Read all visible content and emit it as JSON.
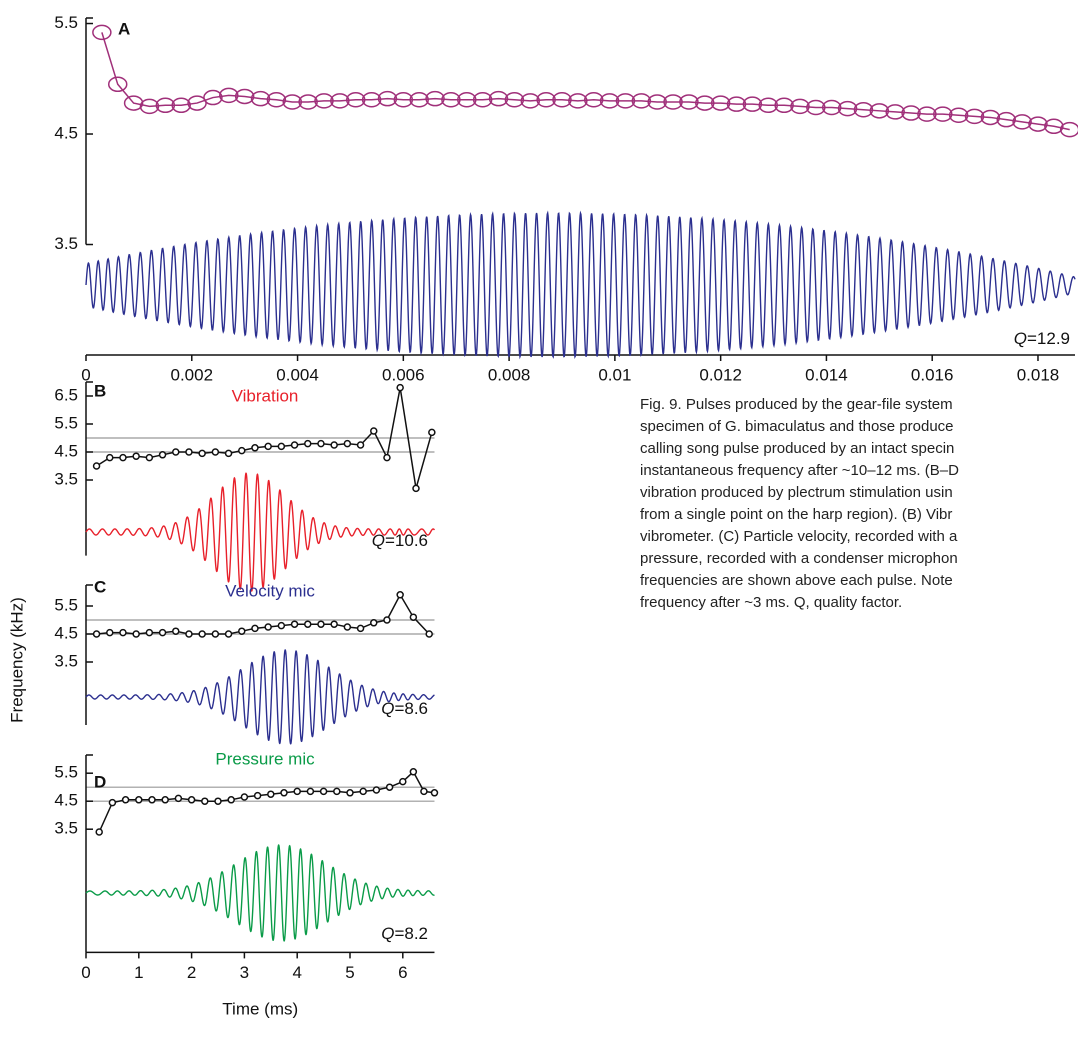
{
  "chart_data": [
    {
      "type": "line",
      "panel": "A",
      "annotation_symbol": "Q",
      "annotation": "=12.9",
      "color": "#a0307a",
      "waveform_color": "#2b2f8f",
      "xlim": [
        0,
        0.0187
      ],
      "xticks": [
        0,
        0.002,
        0.004,
        0.006,
        0.008,
        0.01,
        0.012,
        0.014,
        0.016,
        0.018
      ],
      "ylim": [
        2.5,
        5.55
      ],
      "yticks": [
        3.5,
        4.5,
        5.5
      ],
      "x": [
        0.0003,
        0.0006,
        0.0009,
        0.0012,
        0.0015,
        0.0018,
        0.0021,
        0.0024,
        0.0027,
        0.003,
        0.0033,
        0.0036,
        0.0039,
        0.0042,
        0.0045,
        0.0048,
        0.0051,
        0.0054,
        0.0057,
        0.006,
        0.0063,
        0.0066,
        0.0069,
        0.0072,
        0.0075,
        0.0078,
        0.0081,
        0.0084,
        0.0087,
        0.009,
        0.0093,
        0.0096,
        0.0099,
        0.0102,
        0.0105,
        0.0108,
        0.0111,
        0.0114,
        0.0117,
        0.012,
        0.0123,
        0.0126,
        0.0129,
        0.0132,
        0.0135,
        0.0138,
        0.0141,
        0.0144,
        0.0147,
        0.015,
        0.0153,
        0.0156,
        0.0159,
        0.0162,
        0.0165,
        0.0168,
        0.0171,
        0.0174,
        0.0177,
        0.018,
        0.0183,
        0.0186
      ],
      "values": [
        5.42,
        4.95,
        4.78,
        4.75,
        4.76,
        4.76,
        4.78,
        4.83,
        4.85,
        4.84,
        4.82,
        4.81,
        4.79,
        4.79,
        4.8,
        4.8,
        4.81,
        4.81,
        4.82,
        4.81,
        4.81,
        4.82,
        4.81,
        4.81,
        4.81,
        4.82,
        4.81,
        4.8,
        4.81,
        4.81,
        4.8,
        4.81,
        4.8,
        4.8,
        4.8,
        4.79,
        4.79,
        4.79,
        4.78,
        4.78,
        4.77,
        4.77,
        4.76,
        4.76,
        4.75,
        4.74,
        4.74,
        4.73,
        4.72,
        4.71,
        4.7,
        4.69,
        4.68,
        4.68,
        4.67,
        4.66,
        4.65,
        4.63,
        4.61,
        4.59,
        4.57,
        4.54
      ]
    },
    {
      "type": "line",
      "panel": "B",
      "title": "Vibration",
      "title_color": "#e8202a",
      "annotation_symbol": "Q",
      "annotation": "=10.6",
      "color": "#111111",
      "waveform_color": "#e8202a",
      "ref_lines": [
        4.5,
        5
      ],
      "ref_color": "#999999",
      "xlim": [
        0,
        6.6
      ],
      "ylim": [
        0.8,
        7.0
      ],
      "yticks": [
        3.5,
        4.5,
        5.5,
        6.5
      ],
      "x": [
        0.2,
        0.45,
        0.7,
        0.95,
        1.2,
        1.45,
        1.7,
        1.95,
        2.2,
        2.45,
        2.7,
        2.95,
        3.2,
        3.45,
        3.7,
        3.95,
        4.2,
        4.45,
        4.7,
        4.95,
        5.2,
        5.45,
        5.7,
        5.95,
        6.25,
        6.55
      ],
      "values": [
        4.0,
        4.3,
        4.3,
        4.35,
        4.3,
        4.4,
        4.5,
        4.5,
        4.45,
        4.5,
        4.45,
        4.55,
        4.65,
        4.7,
        4.7,
        4.75,
        4.8,
        4.8,
        4.75,
        4.8,
        4.75,
        5.25,
        4.3,
        6.8,
        3.2,
        5.2
      ]
    },
    {
      "type": "line",
      "panel": "C",
      "title": "Velocity mic",
      "title_color": "#2b2f8f",
      "annotation_symbol": "Q",
      "annotation": "=8.6",
      "ylabel": "Frequency (kHz)",
      "color": "#111111",
      "waveform_color": "#2b2f8f",
      "ref_lines": [
        4.5,
        5
      ],
      "ref_color": "#999999",
      "xlim": [
        0,
        6.6
      ],
      "ylim": [
        1.25,
        6.25
      ],
      "yticks": [
        3.5,
        4.5,
        5.5
      ],
      "x": [
        0.2,
        0.45,
        0.7,
        0.95,
        1.2,
        1.45,
        1.7,
        1.95,
        2.2,
        2.45,
        2.7,
        2.95,
        3.2,
        3.45,
        3.7,
        3.95,
        4.2,
        4.45,
        4.7,
        4.95,
        5.2,
        5.45,
        5.7,
        5.95,
        6.2,
        6.5
      ],
      "values": [
        4.5,
        4.55,
        4.55,
        4.5,
        4.55,
        4.55,
        4.6,
        4.5,
        4.5,
        4.5,
        4.5,
        4.6,
        4.7,
        4.75,
        4.8,
        4.85,
        4.85,
        4.85,
        4.85,
        4.75,
        4.7,
        4.9,
        5.0,
        5.9,
        5.1,
        4.5
      ]
    },
    {
      "type": "line",
      "panel": "D",
      "title": "Pressure mic",
      "title_color": "#0a9b48",
      "annotation_symbol": "Q",
      "annotation": "=8.2",
      "xlabel": "Time (ms)",
      "color": "#111111",
      "waveform_color": "#0a9b48",
      "ref_lines": [
        4.5,
        5
      ],
      "ref_color": "#999999",
      "xlim": [
        0,
        6.6
      ],
      "xticks": [
        0,
        1,
        2,
        3,
        4,
        5,
        6
      ],
      "ylim": [
        -0.9,
        6.15
      ],
      "yticks": [
        3.5,
        4.5,
        5.5
      ],
      "x": [
        0.25,
        0.5,
        0.75,
        1.0,
        1.25,
        1.5,
        1.75,
        2.0,
        2.25,
        2.5,
        2.75,
        3.0,
        3.25,
        3.5,
        3.75,
        4.0,
        4.25,
        4.5,
        4.75,
        5.0,
        5.25,
        5.5,
        5.75,
        6.0,
        6.2,
        6.4,
        6.6
      ],
      "values": [
        3.4,
        4.45,
        4.55,
        4.55,
        4.55,
        4.55,
        4.6,
        4.55,
        4.5,
        4.5,
        4.55,
        4.65,
        4.7,
        4.75,
        4.8,
        4.85,
        4.85,
        4.85,
        4.85,
        4.8,
        4.85,
        4.9,
        5.0,
        5.2,
        5.55,
        4.85,
        4.8
      ]
    }
  ],
  "caption": {
    "lines": [
      "Fig. 9. Pulses produced by the gear-file system",
      "specimen of G. bimaculatus and those produce",
      "calling song pulse produced by an intact specin",
      "instantaneous frequency after ~10–12 ms. (B–D",
      "vibration produced by plectrum stimulation usin",
      "from a single point on the harp region). (B) Vibr",
      "vibrometer. (C) Particle velocity, recorded with a",
      "pressure, recorded with a condenser microphon",
      "frequencies are shown above each pulse. Note",
      "frequency after ~3 ms. Q, quality factor."
    ]
  }
}
